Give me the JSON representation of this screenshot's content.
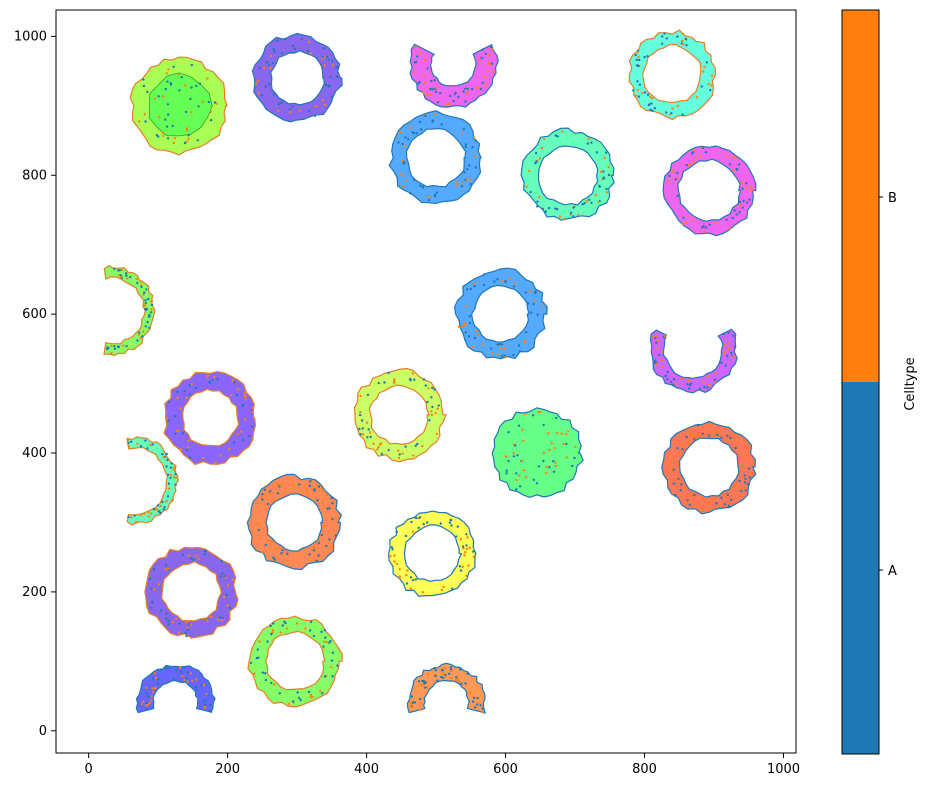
{
  "chart_data": [
    {
      "type": "scatter",
      "title": "",
      "xlabel": "",
      "ylabel": "",
      "xlim": [
        -47,
        1018
      ],
      "ylim": [
        -32,
        1038
      ],
      "xticks": [
        0,
        200,
        400,
        600,
        800,
        1000
      ],
      "yticks": [
        0,
        200,
        400,
        600,
        800,
        1000
      ],
      "grid": false,
      "description": "Cell outlines (annular regions) with scattered points colored by cell type",
      "cells": [
        {
          "cx": 130,
          "cy": 900,
          "r_out": 68,
          "r_in": 0,
          "fill": "#aaff55",
          "inner_fill": "#66ff55",
          "inner_r": 45,
          "shape": "ring",
          "edge": "#e67e22"
        },
        {
          "cx": 300,
          "cy": 940,
          "r_out": 62,
          "r_in": 38,
          "fill": "#8866ee",
          "shape": "ring",
          "edge": "#1f77b4"
        },
        {
          "cx": 525,
          "cy": 960,
          "r_out": 62,
          "r_in": 32,
          "fill": "#ee66ee",
          "shape": "arc-top-open",
          "edge": "#1f77b4"
        },
        {
          "cx": 840,
          "cy": 945,
          "r_out": 62,
          "r_in": 42,
          "fill": "#66ffdd",
          "shape": "ring",
          "edge": "#e67e22"
        },
        {
          "cx": 500,
          "cy": 825,
          "r_out": 65,
          "r_in": 42,
          "fill": "#55aaff",
          "shape": "ring",
          "edge": "#1f77b4"
        },
        {
          "cx": 690,
          "cy": 800,
          "r_out": 65,
          "r_in": 43,
          "fill": "#66ffbb",
          "shape": "ring",
          "edge": "#1f77b4"
        },
        {
          "cx": 893,
          "cy": 778,
          "r_out": 64,
          "r_in": 44,
          "fill": "#ee66ee",
          "shape": "ring",
          "edge": "#1f77b4"
        },
        {
          "cx": 32,
          "cy": 605,
          "r_out": 62,
          "r_in": 48,
          "fill": "#88ff66",
          "shape": "arc-right",
          "edge": "#e67e22"
        },
        {
          "cx": 593,
          "cy": 600,
          "r_out": 64,
          "r_in": 40,
          "fill": "#55aaff",
          "shape": "ring",
          "edge": "#1f77b4"
        },
        {
          "cx": 870,
          "cy": 550,
          "r_out": 62,
          "r_in": 42,
          "fill": "#cc66ff",
          "shape": "arc-top-open",
          "edge": "#1f77b4"
        },
        {
          "cx": 175,
          "cy": 450,
          "r_out": 66,
          "r_in": 40,
          "fill": "#8866ff",
          "shape": "ring",
          "edge": "#e67e22"
        },
        {
          "cx": 447,
          "cy": 455,
          "r_out": 64,
          "r_in": 42,
          "fill": "#ccff66",
          "shape": "ring",
          "edge": "#e67e22"
        },
        {
          "cx": 645,
          "cy": 400,
          "r_out": 64,
          "r_in": 0,
          "fill": "#66ff88",
          "shape": "blob",
          "edge": "#1f77b4"
        },
        {
          "cx": 893,
          "cy": 380,
          "r_out": 65,
          "r_in": 42,
          "fill": "#ff7755",
          "shape": "ring",
          "edge": "#1f77b4"
        },
        {
          "cx": 65,
          "cy": 360,
          "r_out": 62,
          "r_in": 48,
          "fill": "#66ffbb",
          "shape": "arc-right",
          "edge": "#e67e22"
        },
        {
          "cx": 296,
          "cy": 300,
          "r_out": 66,
          "r_in": 40,
          "fill": "#ff8855",
          "shape": "ring",
          "edge": "#1f77b4"
        },
        {
          "cx": 495,
          "cy": 255,
          "r_out": 62,
          "r_in": 40,
          "fill": "#ffff55",
          "shape": "ring",
          "edge": "#1f77b4"
        },
        {
          "cx": 148,
          "cy": 200,
          "r_out": 65,
          "r_in": 42,
          "fill": "#8866ee",
          "shape": "ring",
          "edge": "#e67e22"
        },
        {
          "cx": 297,
          "cy": 100,
          "r_out": 65,
          "r_in": 42,
          "fill": "#88ff66",
          "shape": "ring",
          "edge": "#e67e22"
        },
        {
          "cx": 125,
          "cy": 40,
          "r_out": 55,
          "r_in": 32,
          "fill": "#6666ff",
          "shape": "arc-bottom-open",
          "edge": "#1f77b4"
        },
        {
          "cx": 515,
          "cy": 40,
          "r_out": 55,
          "r_in": 32,
          "fill": "#ff9955",
          "shape": "arc-bottom-open",
          "edge": "#1f77b4"
        }
      ]
    },
    {
      "type": "colorbar",
      "label": "Celltype",
      "categories": [
        "A",
        "B"
      ],
      "colors": [
        "#1f77b4",
        "#ff7f0e"
      ]
    }
  ]
}
